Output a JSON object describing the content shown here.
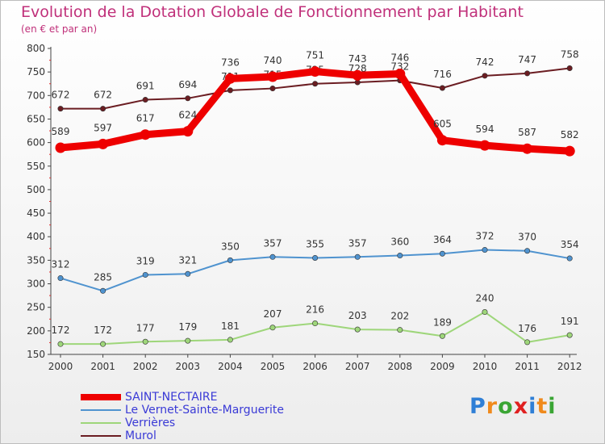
{
  "header": {
    "title": "Evolution de la Dotation Globale de Fonctionnement par Habitant",
    "subtitle": "(en € et par an)"
  },
  "brand": {
    "letters": [
      "P",
      "r",
      "o",
      "x",
      "i",
      "t",
      "i"
    ],
    "colors": [
      "#2f7fd6",
      "#f08a1c",
      "#3aa534",
      "#e02020",
      "#2f7fd6",
      "#f08a1c",
      "#3aa534"
    ]
  },
  "chart_data": {
    "type": "line",
    "title": "Evolution de la Dotation Globale de Fonctionnement par Habitant",
    "subtitle": "(en € et par an)",
    "xlabel": "",
    "ylabel": "",
    "x": [
      "2000",
      "2001",
      "2002",
      "2003",
      "2004",
      "2005",
      "2006",
      "2007",
      "2008",
      "2009",
      "2010",
      "2011",
      "2012"
    ],
    "ylim": [
      150,
      800
    ],
    "yticks": [
      150,
      200,
      250,
      300,
      350,
      400,
      450,
      500,
      550,
      600,
      650,
      700,
      750,
      800
    ],
    "grid": false,
    "legend_position": "bottom-left",
    "series": [
      {
        "name": "SAINT-NECTAIRE",
        "color": "#ee0000",
        "emphasis": true,
        "values": [
          589,
          597,
          617,
          624,
          736,
          740,
          751,
          743,
          746,
          605,
          594,
          587,
          582
        ]
      },
      {
        "name": "Le Vernet-Sainte-Marguerite",
        "color": "#4f93cf",
        "emphasis": false,
        "values": [
          312,
          285,
          319,
          321,
          350,
          357,
          355,
          357,
          360,
          364,
          372,
          370,
          354
        ]
      },
      {
        "name": "Verrières",
        "color": "#9ed67a",
        "emphasis": false,
        "values": [
          172,
          172,
          177,
          179,
          181,
          207,
          216,
          203,
          202,
          189,
          240,
          176,
          191
        ]
      },
      {
        "name": "Murol",
        "color": "#6b1d22",
        "emphasis": false,
        "values": [
          672,
          672,
          691,
          694,
          711,
          715,
          725,
          728,
          732,
          716,
          742,
          747,
          758
        ]
      }
    ]
  }
}
